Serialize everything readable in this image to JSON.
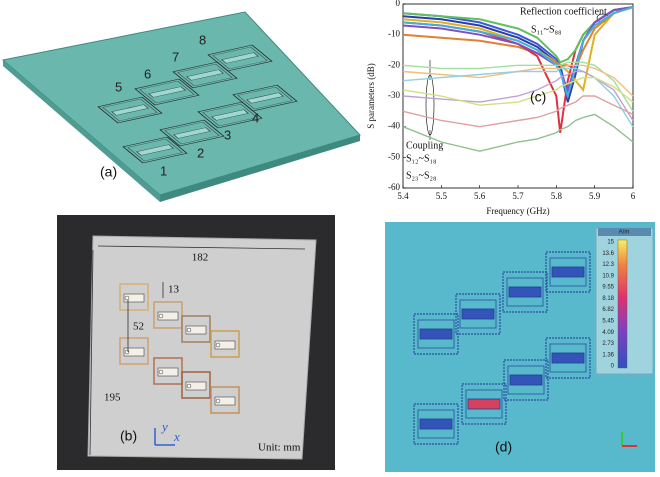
{
  "chart_data": {
    "type": "line",
    "x_label": "Frequency (GHz)",
    "y_label": "S parameters (dB)",
    "x": [
      5.4,
      5.5,
      5.6,
      5.7,
      5.75,
      5.8,
      5.81,
      5.83,
      5.85,
      5.87,
      5.9,
      5.95,
      6.0
    ],
    "xlim": [
      5.4,
      6.0
    ],
    "xticks": [
      5.4,
      5.5,
      5.6,
      5.7,
      5.8,
      5.9,
      6.0
    ],
    "ylim": [
      -60,
      0
    ],
    "yticks": [
      0,
      -10,
      -20,
      -30,
      -40,
      -50,
      -60
    ],
    "annotations": [
      "Reflection coefficient",
      "S₁₁~S₈₈",
      "Coupling",
      "S₁₂~S₁₈",
      "S₂₃~S₂₈",
      "(c)"
    ],
    "series": [
      {
        "color": "#3a5ad8",
        "values": [
          -3,
          -4,
          -6,
          -10,
          -13,
          -18,
          -20,
          -30,
          -22,
          -12,
          -6,
          -2,
          -1
        ]
      },
      {
        "color": "#2a3ea8",
        "values": [
          -4,
          -5,
          -7,
          -11,
          -14,
          -19,
          -21,
          -32,
          -23,
          -12,
          -6,
          -2,
          -1
        ]
      },
      {
        "color": "#e0b020",
        "values": [
          -5,
          -6,
          -8,
          -12,
          -15,
          -19,
          -20,
          -22,
          -25,
          -28,
          -10,
          -3,
          -1
        ]
      },
      {
        "color": "#e08030",
        "values": [
          -10,
          -11,
          -12,
          -14,
          -16,
          -19,
          -20,
          -20,
          -21,
          -15,
          -8,
          -3,
          -1
        ]
      },
      {
        "color": "#e03040",
        "values": [
          -6,
          -7,
          -9,
          -13,
          -17,
          -30,
          -42,
          -25,
          -15,
          -10,
          -6,
          -2,
          -1
        ]
      },
      {
        "color": "#60c060",
        "values": [
          -3,
          -4,
          -5,
          -8,
          -11,
          -17,
          -19,
          -18,
          -15,
          -10,
          -6,
          -2,
          -1
        ]
      },
      {
        "color": "#8050c0",
        "values": [
          -7,
          -8,
          -10,
          -13,
          -16,
          -20,
          -22,
          -28,
          -20,
          -12,
          -6,
          -2,
          -1
        ]
      },
      {
        "color": "#40b0e0",
        "values": [
          -6,
          -7,
          -9,
          -12,
          -15,
          -20,
          -22,
          -30,
          -21,
          -12,
          -7,
          -3,
          -1
        ]
      },
      {
        "color": "#a0e0a0",
        "values": [
          -20,
          -21,
          -21,
          -20,
          -20,
          -20,
          -20,
          -19,
          -19,
          -19,
          -20,
          -25,
          -35
        ]
      },
      {
        "color": "#f0c080",
        "values": [
          -22,
          -23,
          -24,
          -22,
          -21,
          -21,
          -21,
          -20,
          -20,
          -20,
          -21,
          -24,
          -30
        ]
      },
      {
        "color": "#90d0e0",
        "values": [
          -25,
          -24,
          -23,
          -22,
          -22,
          -22,
          -21,
          -21,
          -21,
          -22,
          -24,
          -30,
          -40
        ]
      },
      {
        "color": "#c0a0d0",
        "values": [
          -30,
          -31,
          -32,
          -30,
          -28,
          -25,
          -24,
          -23,
          -22,
          -22,
          -24,
          -28,
          -38
        ]
      },
      {
        "color": "#e0a0a0",
        "values": [
          -35,
          -38,
          -40,
          -38,
          -37,
          -35,
          -34,
          -33,
          -32,
          -30,
          -30,
          -33,
          -36
        ]
      },
      {
        "color": "#8fc08f",
        "values": [
          -40,
          -45,
          -48,
          -45,
          -44,
          -42,
          -41,
          -40,
          -38,
          -37,
          -36,
          -40,
          -45
        ]
      },
      {
        "color": "#d0e080",
        "values": [
          -28,
          -30,
          -33,
          -32,
          -30,
          -28,
          -27,
          -26,
          -25,
          -24,
          -24,
          -27,
          -32
        ]
      }
    ]
  },
  "panel_a": {
    "labels": [
      "1",
      "2",
      "3",
      "4",
      "5",
      "6",
      "7",
      "8"
    ],
    "caption": "(a)"
  },
  "panel_b": {
    "width": "182",
    "gap": "13",
    "spacing": "52",
    "height": "195",
    "axis_y": "y",
    "axis_x": "x",
    "unit": "Unit: mm",
    "caption": "(b)"
  },
  "panel_d": {
    "unit": "A/m",
    "colorbar": [
      "15",
      "13.6",
      "12.3",
      "10.9",
      "9.55",
      "8.18",
      "6.82",
      "5.45",
      "4.09",
      "2.73",
      "1.36",
      "0"
    ],
    "caption": "(d)"
  }
}
